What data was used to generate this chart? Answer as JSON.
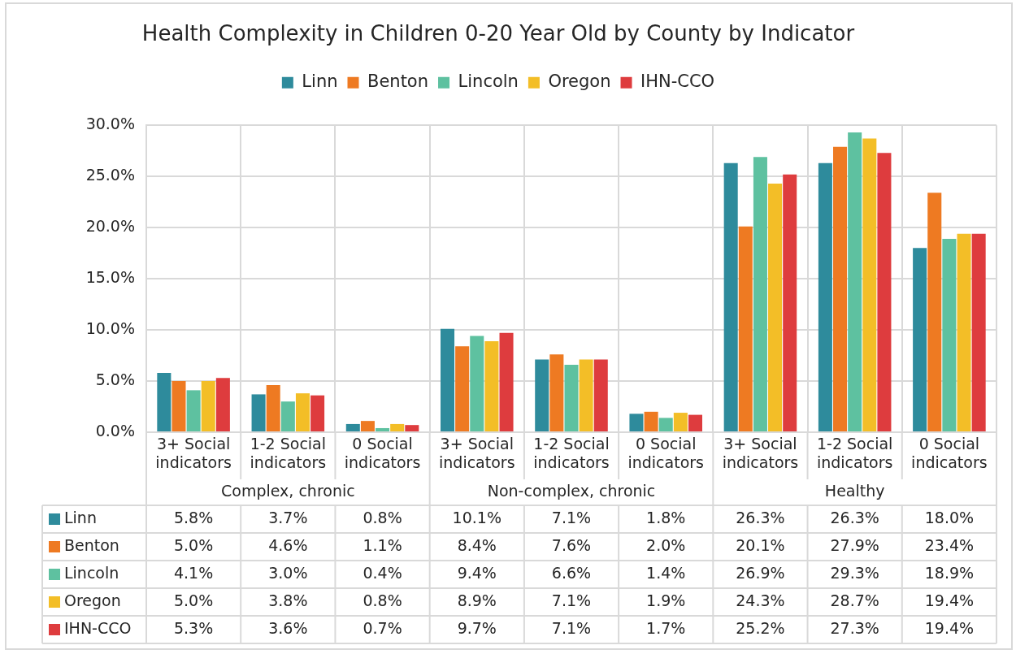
{
  "chart_data": {
    "type": "bar",
    "title": "Health Complexity in Children 0-20 Year Old by County by Indicator",
    "legend": "top",
    "grid": true,
    "categories": [
      "3+ Social indicators",
      "1-2 Social indicators",
      "0 Social indicators",
      "3+ Social indicators",
      "1-2 Social indicators",
      "0 Social indicators",
      "3+ Social indicators",
      "1-2 Social indicators",
      "0 Social indicators"
    ],
    "annotations": [
      "Complex, chronic",
      "Non-complex, chronic",
      "Healthy"
    ],
    "ylim": [
      0,
      30
    ],
    "yticks": [
      {
        "value": 0,
        "label": "0.0%"
      },
      {
        "value": 5,
        "label": "5.0%"
      },
      {
        "value": 10,
        "label": "10.0%"
      },
      {
        "value": 15,
        "label": "15.0%"
      },
      {
        "value": 20,
        "label": "20.0%"
      },
      {
        "value": 25,
        "label": "25.0%"
      },
      {
        "value": 30,
        "label": "30.0%"
      }
    ],
    "series": [
      {
        "name": "Linn",
        "color": "#2e8b9c",
        "values": [
          5.8,
          3.7,
          0.8,
          10.1,
          7.1,
          1.8,
          26.3,
          26.3,
          18.0
        ],
        "value_labels": [
          "5.8%",
          "3.7%",
          "0.8%",
          "10.1%",
          "7.1%",
          "1.8%",
          "26.3%",
          "26.3%",
          "18.0%"
        ]
      },
      {
        "name": "Benton",
        "color": "#ee7a22",
        "values": [
          5.0,
          4.6,
          1.1,
          8.4,
          7.6,
          2.0,
          20.1,
          27.9,
          23.4
        ],
        "value_labels": [
          "5.0%",
          "4.6%",
          "1.1%",
          "8.4%",
          "7.6%",
          "2.0%",
          "20.1%",
          "27.9%",
          "23.4%"
        ]
      },
      {
        "name": "Lincoln",
        "color": "#5ec1a0",
        "values": [
          4.1,
          3.0,
          0.4,
          9.4,
          6.6,
          1.4,
          26.9,
          29.3,
          18.9
        ],
        "value_labels": [
          "4.1%",
          "3.0%",
          "0.4%",
          "9.4%",
          "6.6%",
          "1.4%",
          "26.9%",
          "29.3%",
          "18.9%"
        ]
      },
      {
        "name": "Oregon",
        "color": "#f3be27",
        "values": [
          5.0,
          3.8,
          0.8,
          8.9,
          7.1,
          1.9,
          24.3,
          28.7,
          19.4
        ],
        "value_labels": [
          "5.0%",
          "3.8%",
          "0.8%",
          "8.9%",
          "7.1%",
          "1.9%",
          "24.3%",
          "28.7%",
          "19.4%"
        ]
      },
      {
        "name": "IHN-CCO",
        "color": "#de3c3e",
        "values": [
          5.3,
          3.6,
          0.7,
          9.7,
          7.1,
          1.7,
          25.2,
          27.3,
          19.4
        ],
        "value_labels": [
          "5.3%",
          "3.6%",
          "0.7%",
          "9.7%",
          "7.1%",
          "1.7%",
          "25.2%",
          "27.3%",
          "19.4%"
        ]
      }
    ]
  }
}
